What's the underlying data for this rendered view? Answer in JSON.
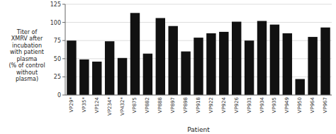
{
  "chart_data": {
    "type": "bar",
    "categories": [
      "VP29*",
      "VP35*",
      "VP124",
      "VP234*",
      "VP432*",
      "VP875",
      "VP882",
      "VP888",
      "VP897",
      "VP898",
      "VP918",
      "VP922",
      "VP924",
      "VP926",
      "VP931",
      "VP934",
      "VP935",
      "VP949",
      "VP950",
      "VP964",
      "VP967"
    ],
    "values": [
      75,
      49,
      46,
      74,
      51,
      113,
      57,
      106,
      95,
      60,
      79,
      85,
      87,
      101,
      75,
      102,
      97,
      85,
      22,
      80,
      93
    ],
    "color": "#111111",
    "xlabel": "Patient",
    "ylabel": "Titer of\nXMRV after\nincubation\nwith patient\nplasma\n(% of control\nwithout\nplasma)",
    "ylim": [
      0,
      125
    ],
    "yticks": [
      0,
      25,
      50,
      75,
      100,
      125
    ],
    "grid": true
  }
}
